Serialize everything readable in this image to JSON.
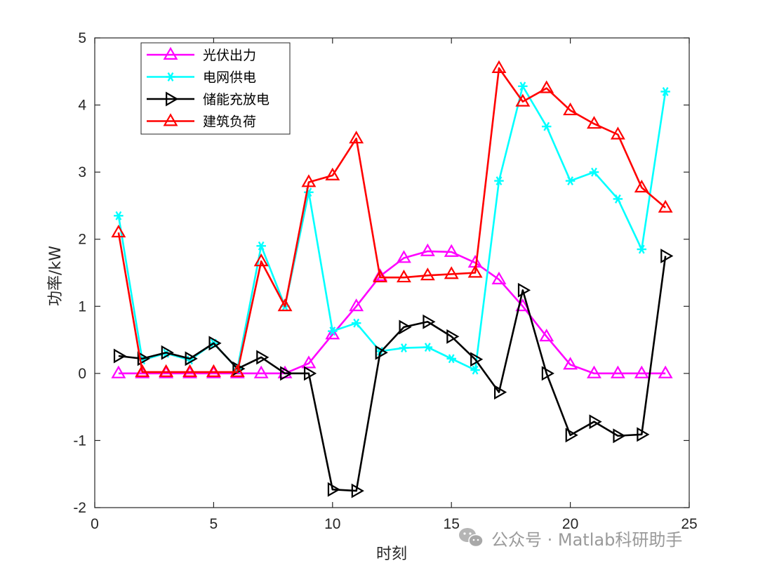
{
  "chart_data": {
    "type": "line",
    "title": "",
    "xlabel": "时刻",
    "ylabel": "功率/kW",
    "xlim": [
      0,
      25
    ],
    "ylim": [
      -2,
      5
    ],
    "xticks": [
      0,
      5,
      10,
      15,
      20,
      25
    ],
    "yticks": [
      -2,
      -1,
      0,
      1,
      2,
      3,
      4,
      5
    ],
    "x": [
      1,
      2,
      3,
      4,
      5,
      6,
      7,
      8,
      9,
      10,
      11,
      12,
      13,
      14,
      15,
      16,
      17,
      18,
      19,
      20,
      21,
      22,
      23,
      24
    ],
    "legend_position": "top-left",
    "series": [
      {
        "name": "光伏出力",
        "color": "#ff00ff",
        "marker": "triangle-up",
        "values": [
          0,
          0,
          0,
          0,
          0,
          0,
          0,
          0,
          0.15,
          0.58,
          1.0,
          1.45,
          1.72,
          1.82,
          1.81,
          1.65,
          1.4,
          1.0,
          0.55,
          0.13,
          0,
          0,
          0,
          0
        ]
      },
      {
        "name": "电网供电",
        "color": "#00ffff",
        "marker": "asterisk",
        "values": [
          2.35,
          0.2,
          0.3,
          0.2,
          0.45,
          0.07,
          1.9,
          1.0,
          2.7,
          0.63,
          0.75,
          0.33,
          0.38,
          0.39,
          0.22,
          0.05,
          2.87,
          4.28,
          3.68,
          2.87,
          3.0,
          2.6,
          1.85,
          4.2
        ]
      },
      {
        "name": "储能充放电",
        "color": "#000000",
        "marker": "triangle-right",
        "values": [
          0.26,
          0.22,
          0.31,
          0.22,
          0.45,
          0.07,
          0.24,
          0.0,
          0.0,
          -1.73,
          -1.75,
          0.31,
          0.69,
          0.77,
          0.55,
          0.21,
          -0.28,
          1.24,
          0.0,
          -0.92,
          -0.72,
          -0.93,
          -0.91,
          1.75
        ]
      },
      {
        "name": "建筑负荷",
        "color": "#ff0000",
        "marker": "triangle-up",
        "values": [
          2.1,
          0.02,
          0.02,
          0.02,
          0.02,
          0.02,
          1.67,
          1.0,
          2.85,
          2.95,
          3.5,
          1.43,
          1.43,
          1.46,
          1.48,
          1.5,
          4.55,
          4.05,
          4.25,
          3.92,
          3.72,
          3.56,
          2.77,
          2.47
        ]
      }
    ]
  },
  "watermark": {
    "text": "公众号 · Matlab科研助手",
    "icon": "wechat-icon",
    "color": "#9a9a9a"
  }
}
